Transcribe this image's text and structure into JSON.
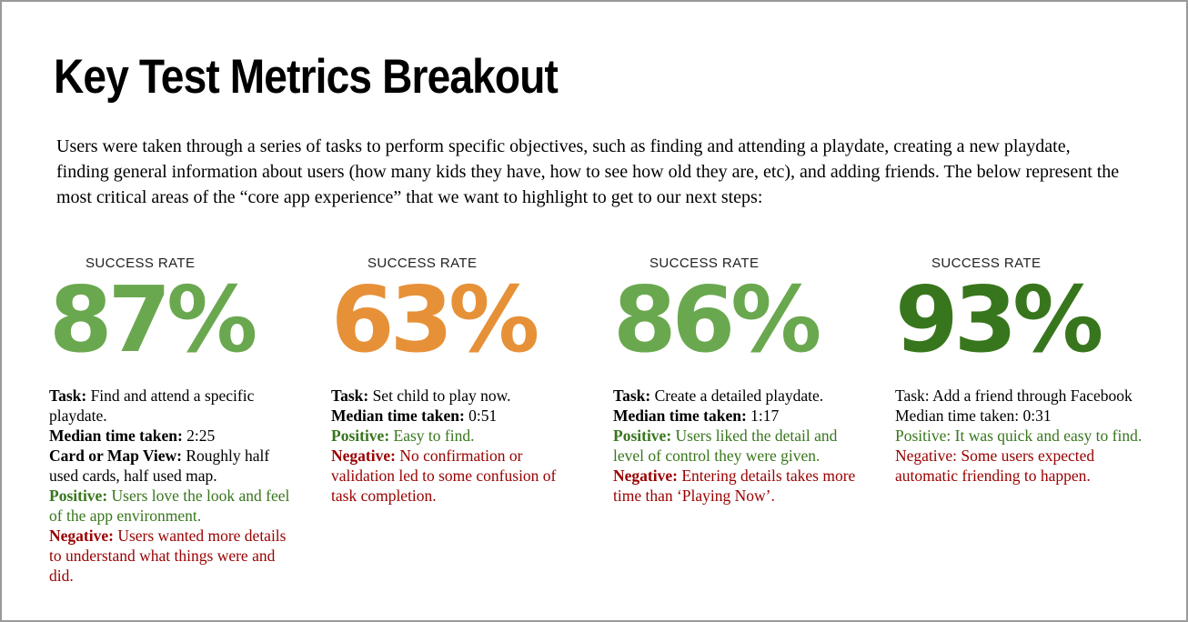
{
  "header": {
    "title": "Key Test Metrics Breakout",
    "intro": "Users were taken through a series of tasks to perform specific objectives, such as finding and attending a playdate, creating a new playdate, finding general information about users (how many kids they have, how to see how old they are, etc), and adding friends. The below represent the most critical areas of the “core app experience” that we want to highlight to get to our next steps:"
  },
  "colors": {
    "green": "#6aa84f",
    "orange": "#e69138",
    "dark_green": "#38761d",
    "positive_text": "#38761d",
    "negative_text": "#990000",
    "border": "#9a9a9a"
  },
  "columns": [
    {
      "rate_label": "SUCCESS RATE",
      "value": "87%",
      "value_color": "#6aa84f",
      "lines": [
        {
          "label": "Task:",
          "text": "Find and attend a specific playdate.",
          "type": "neutral"
        },
        {
          "label": "Median time taken:",
          "text": "2:25",
          "type": "neutral"
        },
        {
          "label": "Card or Map View:",
          "text": "Roughly half used cards, half used map.",
          "type": "neutral"
        },
        {
          "label": "Positive:",
          "text": "Users love the look and feel of the app environment.",
          "type": "positive"
        },
        {
          "label": "Negative:",
          "text": "Users wanted more details to understand what things were and did.",
          "type": "negative"
        }
      ]
    },
    {
      "rate_label": "SUCCESS RATE",
      "value": "63%",
      "value_color": "#e69138",
      "lines": [
        {
          "label": "Task:",
          "text": "Set child to play now.",
          "type": "neutral"
        },
        {
          "label": "Median time taken:",
          "text": "0:51",
          "type": "neutral"
        },
        {
          "label": "Positive:",
          "text": "Easy to find.",
          "type": "positive"
        },
        {
          "label": "Negative:",
          "text": "No confirmation or validation led to some confusion of task completion.",
          "type": "negative"
        }
      ]
    },
    {
      "rate_label": "SUCCESS RATE",
      "value": "86%",
      "value_color": "#6aa84f",
      "lines": [
        {
          "label": "Task:",
          "text": "Create a detailed playdate.",
          "type": "neutral"
        },
        {
          "label": "Median time taken:",
          "text": "1:17",
          "type": "neutral"
        },
        {
          "label": "Positive:",
          "text": "Users liked the detail and level of control they were given.",
          "type": "positive"
        },
        {
          "label": "Negative:",
          "text": "Entering details takes more time than ‘Playing Now’.",
          "type": "negative"
        }
      ]
    },
    {
      "rate_label": "SUCCESS RATE",
      "value": "93%",
      "value_color": "#38761d",
      "lines": [
        {
          "label": "Task:",
          "text": "Add a friend through Facebook",
          "type": "neutral"
        },
        {
          "label": "Median time taken:",
          "text": "0:31",
          "type": "neutral"
        },
        {
          "label": "Positive:",
          "text": "It was quick and easy to find.",
          "type": "positive"
        },
        {
          "label": "Negative:",
          "text": "Some users expected automatic friending to happen.",
          "type": "negative"
        }
      ]
    }
  ]
}
